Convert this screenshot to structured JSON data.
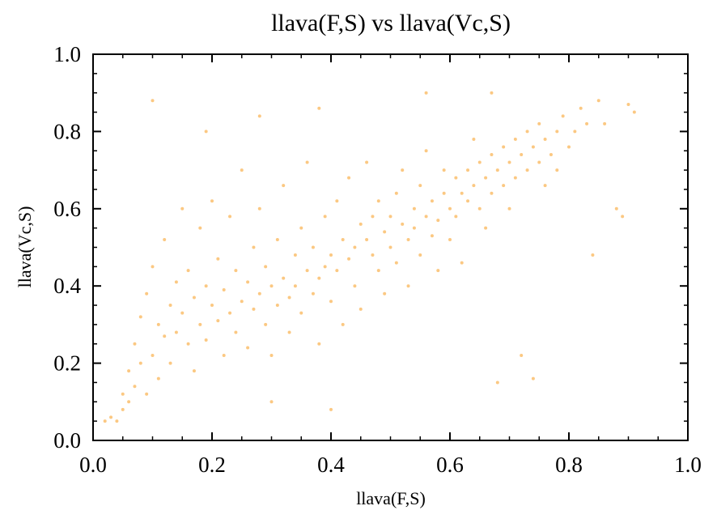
{
  "chart_data": {
    "type": "scatter",
    "title": "llava(F,S) vs llava(Vc,S)",
    "xlabel": "llava(F,S)",
    "ylabel": "llava(Vc,S)",
    "xlim": [
      0.0,
      1.0
    ],
    "ylim": [
      0.0,
      1.0
    ],
    "x_ticks": [
      "0.0",
      "0.2",
      "0.4",
      "0.6",
      "0.8",
      "1.0"
    ],
    "y_ticks": [
      "0.0",
      "0.2",
      "0.4",
      "0.6",
      "0.8",
      "1.0"
    ],
    "grid": false,
    "point_color": "#f89a1c",
    "point_alpha": 0.55,
    "series": [
      {
        "points": [
          [
            0.02,
            0.05
          ],
          [
            0.03,
            0.06
          ],
          [
            0.04,
            0.05
          ],
          [
            0.05,
            0.08
          ],
          [
            0.05,
            0.12
          ],
          [
            0.06,
            0.1
          ],
          [
            0.06,
            0.18
          ],
          [
            0.07,
            0.14
          ],
          [
            0.07,
            0.25
          ],
          [
            0.08,
            0.2
          ],
          [
            0.08,
            0.32
          ],
          [
            0.09,
            0.12
          ],
          [
            0.09,
            0.38
          ],
          [
            0.1,
            0.22
          ],
          [
            0.1,
            0.45
          ],
          [
            0.11,
            0.3
          ],
          [
            0.11,
            0.16
          ],
          [
            0.12,
            0.27
          ],
          [
            0.12,
            0.52
          ],
          [
            0.13,
            0.35
          ],
          [
            0.13,
            0.2
          ],
          [
            0.14,
            0.41
          ],
          [
            0.14,
            0.28
          ],
          [
            0.15,
            0.33
          ],
          [
            0.15,
            0.6
          ],
          [
            0.16,
            0.25
          ],
          [
            0.16,
            0.44
          ],
          [
            0.17,
            0.37
          ],
          [
            0.17,
            0.18
          ],
          [
            0.18,
            0.3
          ],
          [
            0.18,
            0.55
          ],
          [
            0.19,
            0.4
          ],
          [
            0.19,
            0.26
          ],
          [
            0.2,
            0.35
          ],
          [
            0.2,
            0.62
          ],
          [
            0.21,
            0.31
          ],
          [
            0.21,
            0.47
          ],
          [
            0.22,
            0.22
          ],
          [
            0.22,
            0.39
          ],
          [
            0.23,
            0.58
          ],
          [
            0.23,
            0.33
          ],
          [
            0.24,
            0.44
          ],
          [
            0.24,
            0.28
          ],
          [
            0.25,
            0.36
          ],
          [
            0.25,
            0.7
          ],
          [
            0.26,
            0.41
          ],
          [
            0.26,
            0.24
          ],
          [
            0.27,
            0.5
          ],
          [
            0.27,
            0.34
          ],
          [
            0.28,
            0.38
          ],
          [
            0.28,
            0.6
          ],
          [
            0.29,
            0.3
          ],
          [
            0.29,
            0.45
          ],
          [
            0.3,
            0.4
          ],
          [
            0.3,
            0.22
          ],
          [
            0.31,
            0.52
          ],
          [
            0.31,
            0.35
          ],
          [
            0.32,
            0.42
          ],
          [
            0.32,
            0.66
          ],
          [
            0.33,
            0.37
          ],
          [
            0.33,
            0.28
          ],
          [
            0.34,
            0.48
          ],
          [
            0.34,
            0.4
          ],
          [
            0.35,
            0.55
          ],
          [
            0.35,
            0.33
          ],
          [
            0.36,
            0.44
          ],
          [
            0.36,
            0.72
          ],
          [
            0.37,
            0.38
          ],
          [
            0.37,
            0.5
          ],
          [
            0.38,
            0.42
          ],
          [
            0.38,
            0.25
          ],
          [
            0.39,
            0.58
          ],
          [
            0.39,
            0.45
          ],
          [
            0.4,
            0.48
          ],
          [
            0.4,
            0.36
          ],
          [
            0.41,
            0.62
          ],
          [
            0.41,
            0.44
          ],
          [
            0.42,
            0.52
          ],
          [
            0.42,
            0.3
          ],
          [
            0.43,
            0.47
          ],
          [
            0.43,
            0.68
          ],
          [
            0.44,
            0.5
          ],
          [
            0.44,
            0.4
          ],
          [
            0.45,
            0.56
          ],
          [
            0.45,
            0.34
          ],
          [
            0.46,
            0.52
          ],
          [
            0.46,
            0.72
          ],
          [
            0.47,
            0.48
          ],
          [
            0.47,
            0.58
          ],
          [
            0.48,
            0.44
          ],
          [
            0.48,
            0.62
          ],
          [
            0.49,
            0.54
          ],
          [
            0.49,
            0.38
          ],
          [
            0.5,
            0.58
          ],
          [
            0.5,
            0.5
          ],
          [
            0.51,
            0.64
          ],
          [
            0.51,
            0.46
          ],
          [
            0.52,
            0.56
          ],
          [
            0.52,
            0.7
          ],
          [
            0.53,
            0.52
          ],
          [
            0.53,
            0.4
          ],
          [
            0.54,
            0.6
          ],
          [
            0.54,
            0.55
          ],
          [
            0.55,
            0.66
          ],
          [
            0.55,
            0.48
          ],
          [
            0.56,
            0.58
          ],
          [
            0.56,
            0.75
          ],
          [
            0.57,
            0.53
          ],
          [
            0.57,
            0.62
          ],
          [
            0.58,
            0.57
          ],
          [
            0.58,
            0.44
          ],
          [
            0.59,
            0.64
          ],
          [
            0.59,
            0.7
          ],
          [
            0.6,
            0.6
          ],
          [
            0.6,
            0.52
          ],
          [
            0.61,
            0.68
          ],
          [
            0.61,
            0.58
          ],
          [
            0.62,
            0.64
          ],
          [
            0.62,
            0.46
          ],
          [
            0.63,
            0.7
          ],
          [
            0.63,
            0.62
          ],
          [
            0.64,
            0.66
          ],
          [
            0.64,
            0.78
          ],
          [
            0.65,
            0.6
          ],
          [
            0.65,
            0.72
          ],
          [
            0.66,
            0.68
          ],
          [
            0.66,
            0.55
          ],
          [
            0.67,
            0.74
          ],
          [
            0.67,
            0.64
          ],
          [
            0.68,
            0.7
          ],
          [
            0.68,
            0.15
          ],
          [
            0.69,
            0.76
          ],
          [
            0.69,
            0.66
          ],
          [
            0.7,
            0.72
          ],
          [
            0.7,
            0.6
          ],
          [
            0.71,
            0.78
          ],
          [
            0.71,
            0.68
          ],
          [
            0.72,
            0.74
          ],
          [
            0.72,
            0.22
          ],
          [
            0.73,
            0.8
          ],
          [
            0.73,
            0.7
          ],
          [
            0.74,
            0.76
          ],
          [
            0.74,
            0.16
          ],
          [
            0.75,
            0.72
          ],
          [
            0.75,
            0.82
          ],
          [
            0.76,
            0.78
          ],
          [
            0.76,
            0.66
          ],
          [
            0.77,
            0.74
          ],
          [
            0.78,
            0.8
          ],
          [
            0.78,
            0.7
          ],
          [
            0.79,
            0.84
          ],
          [
            0.8,
            0.76
          ],
          [
            0.81,
            0.8
          ],
          [
            0.82,
            0.86
          ],
          [
            0.83,
            0.82
          ],
          [
            0.84,
            0.48
          ],
          [
            0.85,
            0.88
          ],
          [
            0.86,
            0.82
          ],
          [
            0.88,
            0.6
          ],
          [
            0.89,
            0.58
          ],
          [
            0.9,
            0.87
          ],
          [
            0.91,
            0.85
          ],
          [
            0.1,
            0.88
          ],
          [
            0.19,
            0.8
          ],
          [
            0.28,
            0.84
          ],
          [
            0.38,
            0.86
          ],
          [
            0.56,
            0.9
          ],
          [
            0.67,
            0.9
          ],
          [
            0.4,
            0.08
          ],
          [
            0.3,
            0.1
          ]
        ]
      }
    ]
  }
}
